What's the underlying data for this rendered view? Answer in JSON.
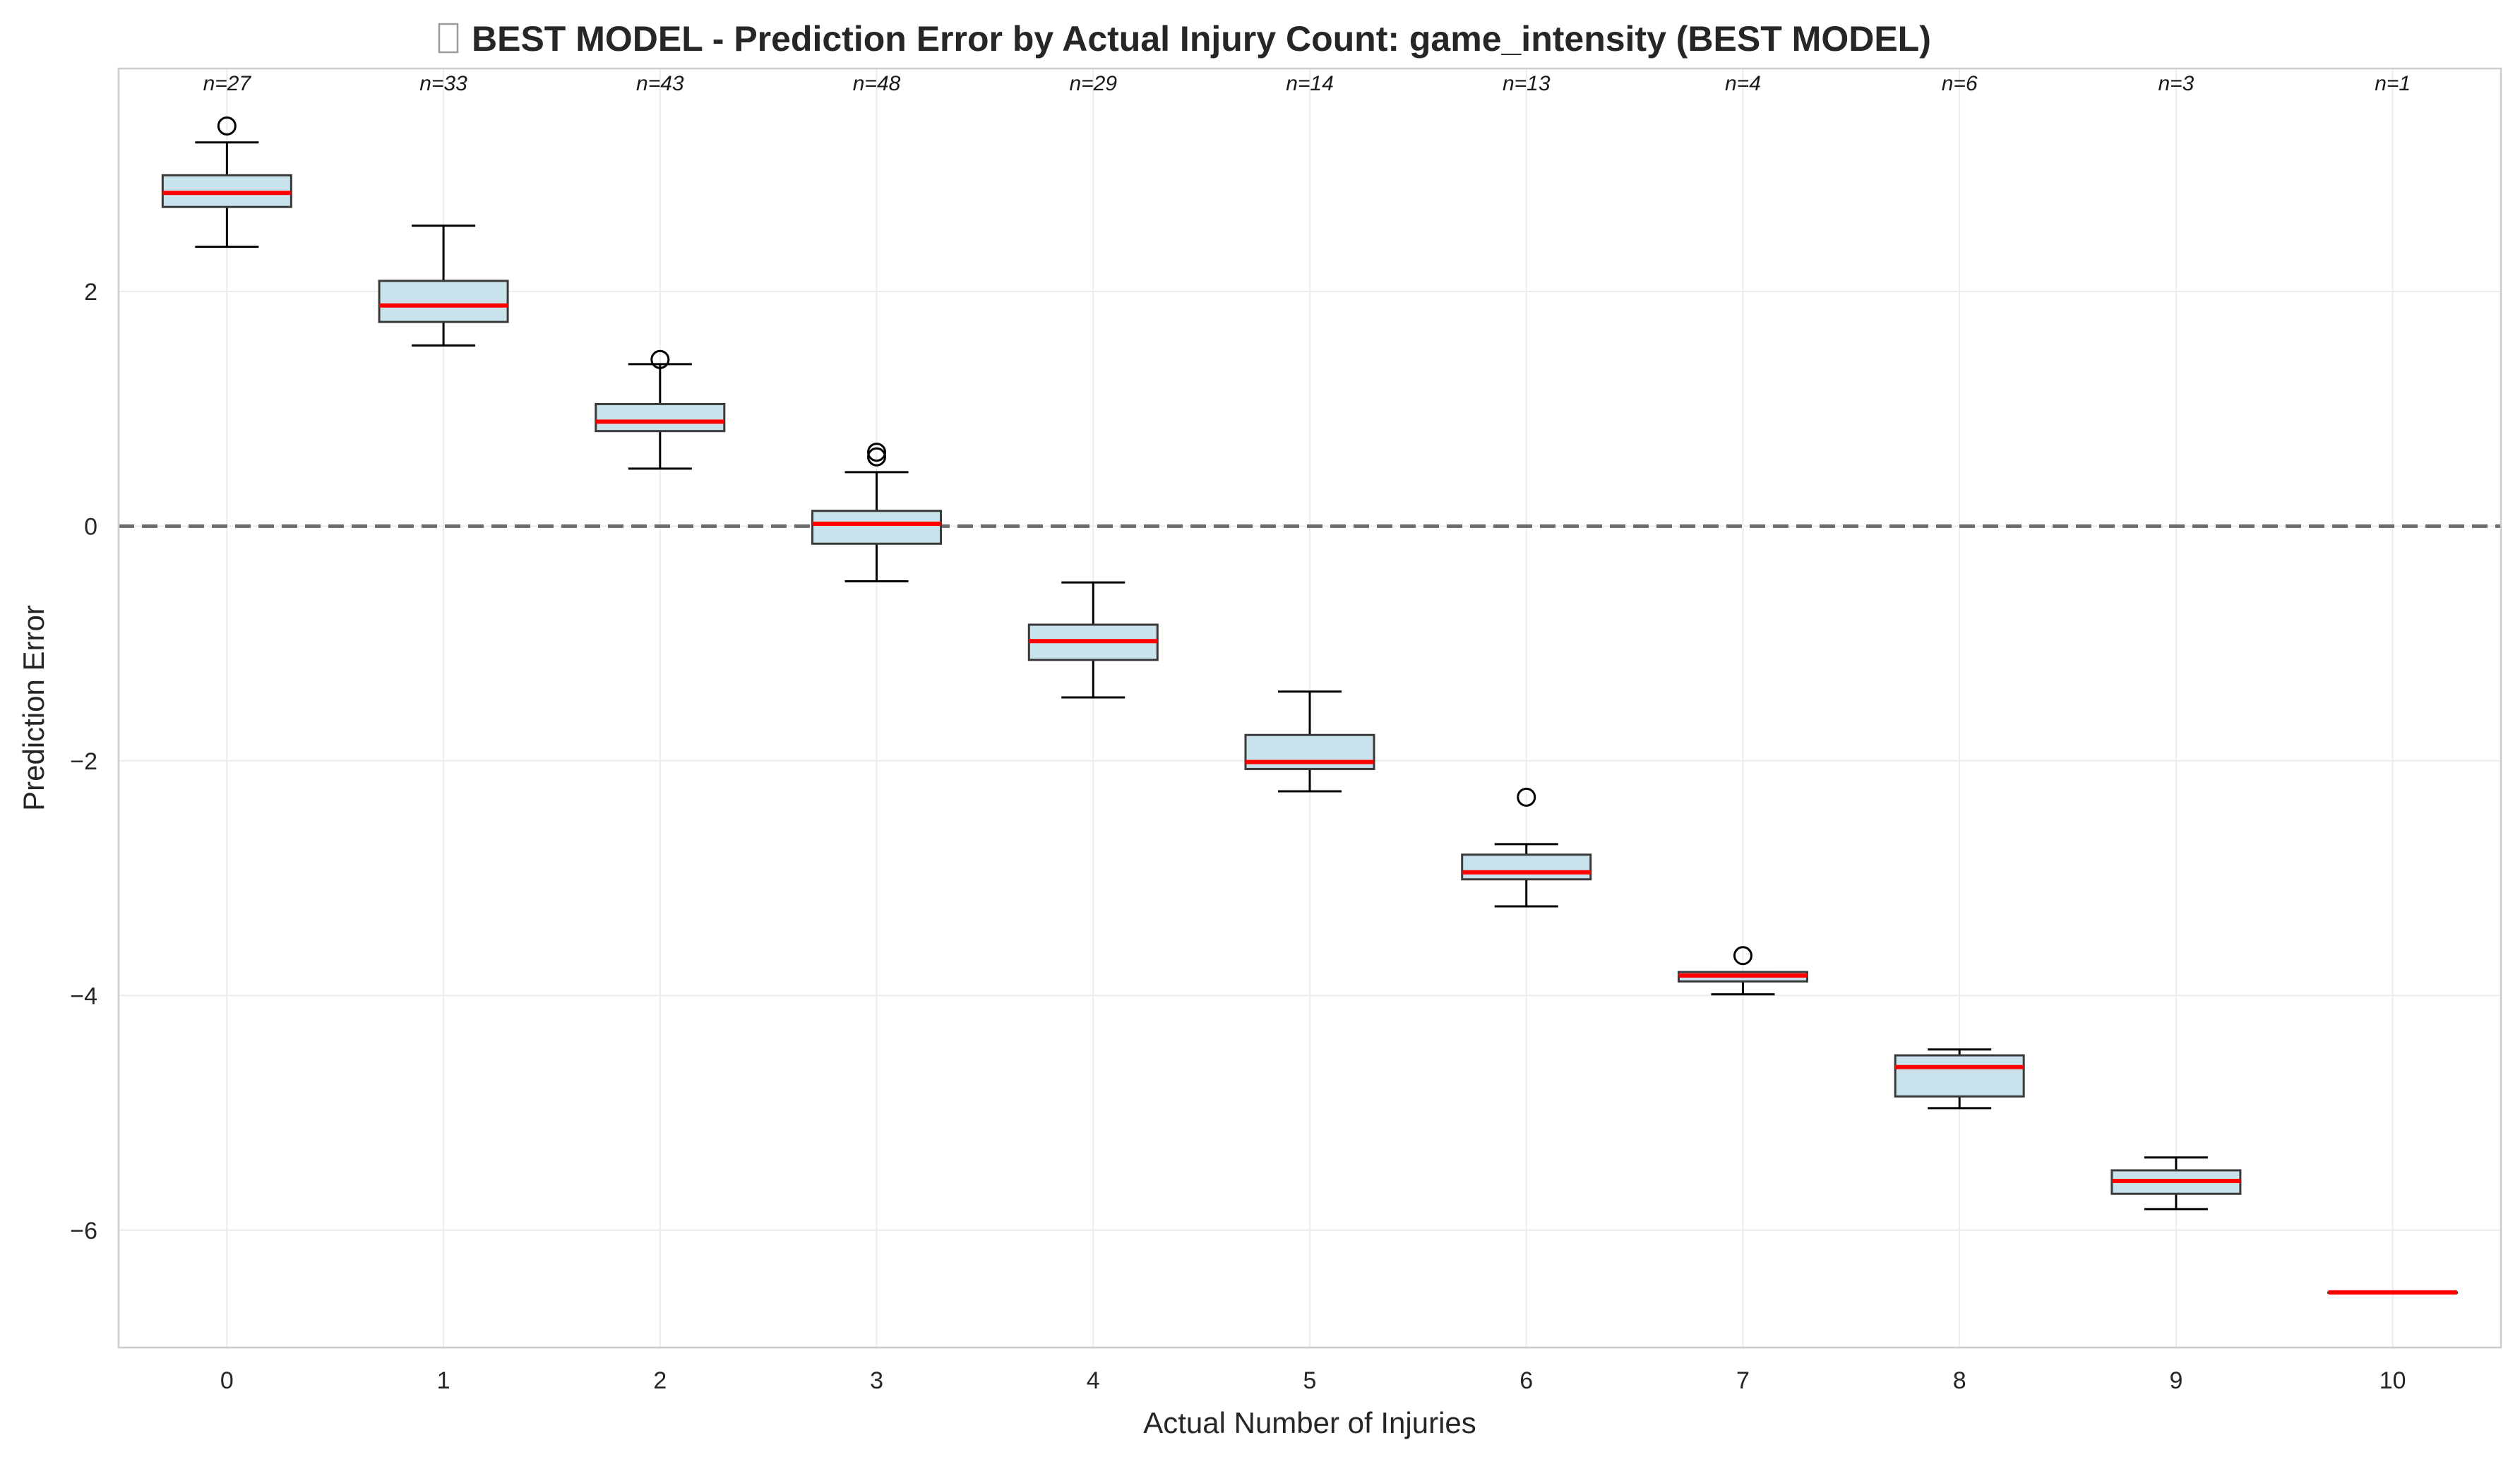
{
  "chart_data": {
    "type": "box",
    "title": "BEST MODEL - Prediction Error by Actual Injury Count: game_intensity (BEST MODEL)",
    "title_icon": "missing-glyph-box",
    "xlabel": "Actual Number of Injuries",
    "ylabel": "Prediction Error",
    "xlim": [
      -0.5,
      10.5
    ],
    "ylim": [
      -7.0,
      3.9
    ],
    "x_ticks": [
      "0",
      "1",
      "2",
      "3",
      "4",
      "5",
      "6",
      "7",
      "8",
      "9",
      "10"
    ],
    "y_ticks": [
      2,
      0,
      -2,
      -4,
      -6
    ],
    "y_tick_labels": [
      "2",
      "0",
      "−2",
      "−4",
      "−6"
    ],
    "reference_line": {
      "y": 0,
      "style": "dashed"
    },
    "grid": true,
    "colors": {
      "box_fill": "#c9e3ec",
      "box_edge": "#3a3a3a",
      "median": "#ff0000",
      "reference": "#6b6b6b",
      "grid": "#ececec"
    },
    "series": [
      {
        "category": "0",
        "n_label": "n=27",
        "whisker_low": 2.38,
        "q1": 2.72,
        "median": 2.84,
        "q3": 2.99,
        "whisker_high": 3.27,
        "outliers": [
          3.41
        ]
      },
      {
        "category": "1",
        "n_label": "n=33",
        "whisker_low": 1.54,
        "q1": 1.74,
        "median": 1.88,
        "q3": 2.09,
        "whisker_high": 2.56,
        "outliers": []
      },
      {
        "category": "2",
        "n_label": "n=43",
        "whisker_low": 0.49,
        "q1": 0.81,
        "median": 0.89,
        "q3": 1.04,
        "whisker_high": 1.38,
        "outliers": [
          1.42
        ]
      },
      {
        "category": "3",
        "n_label": "n=48",
        "whisker_low": -0.47,
        "q1": -0.15,
        "median": 0.02,
        "q3": 0.13,
        "whisker_high": 0.46,
        "outliers": [
          0.59,
          0.63
        ]
      },
      {
        "category": "4",
        "n_label": "n=29",
        "whisker_low": -1.46,
        "q1": -1.14,
        "median": -0.98,
        "q3": -0.84,
        "whisker_high": -0.48,
        "outliers": []
      },
      {
        "category": "5",
        "n_label": "n=14",
        "whisker_low": -2.26,
        "q1": -2.07,
        "median": -2.01,
        "q3": -1.78,
        "whisker_high": -1.41,
        "outliers": []
      },
      {
        "category": "6",
        "n_label": "n=13",
        "whisker_low": -3.24,
        "q1": -3.01,
        "median": -2.95,
        "q3": -2.8,
        "whisker_high": -2.71,
        "outliers": [
          -2.31
        ]
      },
      {
        "category": "7",
        "n_label": "n=4",
        "whisker_low": -3.99,
        "q1": -3.88,
        "median": -3.83,
        "q3": -3.8,
        "whisker_high": -3.8,
        "outliers": [
          -3.66
        ]
      },
      {
        "category": "8",
        "n_label": "n=6",
        "whisker_low": -4.96,
        "q1": -4.86,
        "median": -4.61,
        "q3": -4.51,
        "whisker_high": -4.46,
        "outliers": []
      },
      {
        "category": "9",
        "n_label": "n=3",
        "whisker_low": -5.82,
        "q1": -5.69,
        "median": -5.58,
        "q3": -5.49,
        "whisker_high": -5.38,
        "outliers": []
      },
      {
        "category": "10",
        "n_label": "n=1",
        "whisker_low": -6.53,
        "q1": -6.53,
        "median": -6.53,
        "q3": -6.53,
        "whisker_high": -6.53,
        "outliers": []
      }
    ]
  }
}
